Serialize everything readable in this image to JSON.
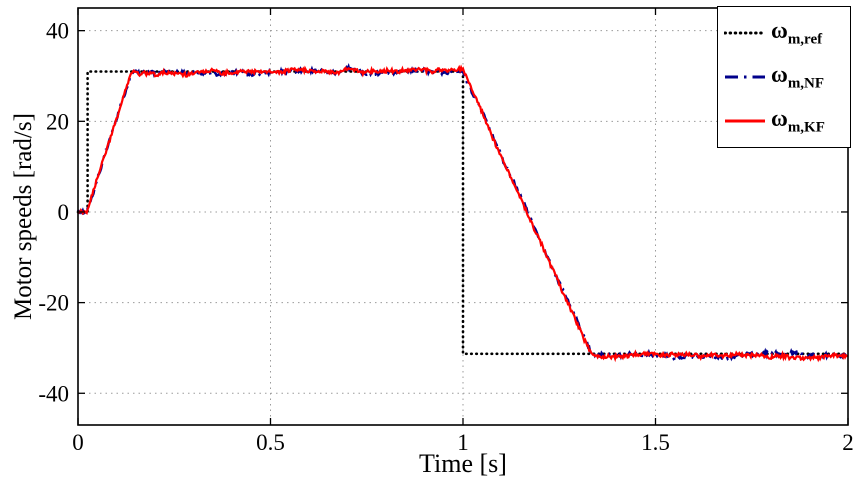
{
  "chart_data": {
    "type": "line",
    "title": "",
    "xlabel": "Time [s]",
    "ylabel": "Motor speeds [rad/s]",
    "xlim": [
      0,
      2
    ],
    "ylim": [
      -47,
      45
    ],
    "xticks": [
      0,
      0.5,
      1,
      1.5,
      2
    ],
    "xtick_labels": [
      "0",
      "0.5",
      "1",
      "1.5",
      "2"
    ],
    "yticks": [
      -40,
      -20,
      0,
      20,
      40
    ],
    "ytick_labels": [
      "-40",
      "-20",
      "0",
      "20",
      "40"
    ],
    "grid": true,
    "grid_color": "#9b9b9b",
    "axis_color": "#000000",
    "legend_position": "top-right",
    "series": [
      {
        "name": "omega_m_ref",
        "symbol": "ω",
        "subscript": "m,ref",
        "color": "#000000",
        "style": "dotted",
        "noise": 0,
        "points": [
          [
            0,
            0
          ],
          [
            0.025,
            0
          ],
          [
            0.025,
            31
          ],
          [
            1.0,
            31
          ],
          [
            1.0,
            -31.3
          ],
          [
            2,
            -31.3
          ]
        ]
      },
      {
        "name": "omega_m_NF",
        "symbol": "ω",
        "subscript": "m,NF",
        "color": "#00008b",
        "style": "dashdot",
        "noise": 0.4,
        "points": [
          [
            0,
            0
          ],
          [
            0.022,
            0
          ],
          [
            0.14,
            31.3
          ],
          [
            0.2,
            31
          ],
          [
            0.68,
            31
          ],
          [
            0.705,
            31.9
          ],
          [
            0.735,
            31
          ],
          [
            1.0,
            31
          ],
          [
            1.335,
            -31.6
          ],
          [
            2,
            -31.6
          ]
        ]
      },
      {
        "name": "omega_m_KF",
        "symbol": "ω",
        "subscript": "m,KF",
        "color": "#ff0000",
        "style": "solid",
        "noise": 0.4,
        "points": [
          [
            0,
            0
          ],
          [
            0.022,
            0
          ],
          [
            0.14,
            31.3
          ],
          [
            0.2,
            31
          ],
          [
            0.68,
            31
          ],
          [
            0.705,
            31.9
          ],
          [
            0.735,
            31
          ],
          [
            1.0,
            31
          ],
          [
            1.335,
            -31.6
          ],
          [
            2,
            -31.6
          ]
        ]
      }
    ]
  }
}
